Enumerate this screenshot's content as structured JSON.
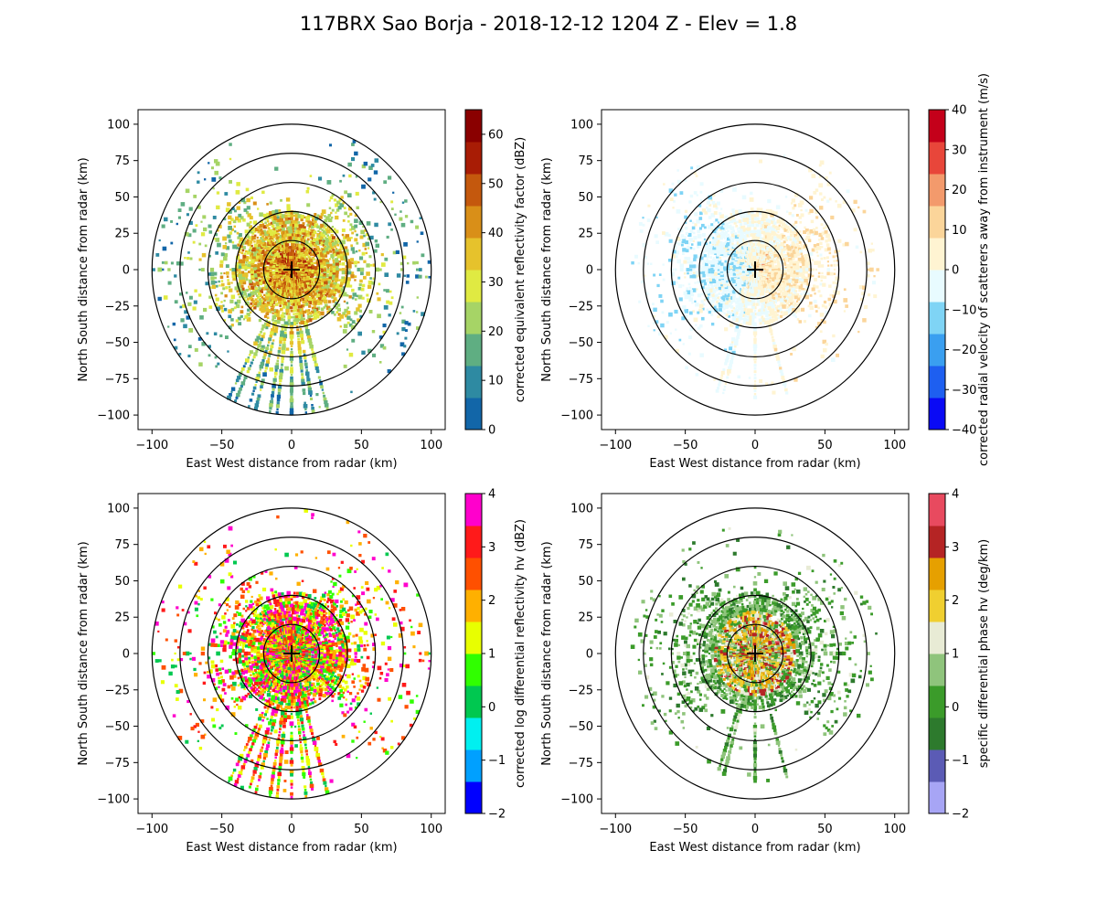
{
  "figure": {
    "title": "117BRX Sao Borja - 2018-12-12 1204 Z -  Elev = 1.8",
    "colors": {
      "ring": "#000000",
      "axis": "#000000",
      "background": "#ffffff"
    }
  },
  "chart_data": [
    {
      "type": "heatmap",
      "panel": "top-left",
      "field": "reflectivity",
      "xlabel": "East West distance from radar (km)",
      "ylabel": "North South distance from radar (km)",
      "xlim": [
        -110,
        110
      ],
      "ylim": [
        -110,
        110
      ],
      "xticks": [
        -100,
        -50,
        0,
        50,
        100
      ],
      "yticks": [
        -100,
        -75,
        -50,
        -25,
        0,
        25,
        50,
        75,
        100
      ],
      "range_rings_km": [
        20,
        40,
        60,
        80,
        100
      ],
      "colorbar": {
        "label": "corrected equivalent reflectivity factor (dBZ)",
        "vmin": 0,
        "vmax": 65,
        "ticks": [
          0,
          10,
          20,
          30,
          40,
          50,
          60
        ],
        "colors": [
          "#1266a8",
          "#2e8aa2",
          "#5fae82",
          "#a6d466",
          "#e0ea42",
          "#e6c22c",
          "#d98f18",
          "#c4580d",
          "#a81c05",
          "#8a0000"
        ]
      },
      "echo": {
        "max_range_km": 100,
        "south_beams_deg": [
          165,
          172,
          180,
          188,
          197,
          205
        ]
      }
    },
    {
      "type": "heatmap",
      "panel": "top-right",
      "field": "velocity",
      "xlabel": "East West distance from radar (km)",
      "ylabel": "North South distance from radar (km)",
      "xlim": [
        -110,
        110
      ],
      "ylim": [
        -110,
        110
      ],
      "xticks": [
        -100,
        -50,
        0,
        50,
        100
      ],
      "yticks": [
        -100,
        -75,
        -50,
        -25,
        0,
        25,
        50,
        75,
        100
      ],
      "range_rings_km": [
        20,
        40,
        60,
        80,
        100
      ],
      "colorbar": {
        "label": "corrected radial velocity of scatterers away from instrument (m/s)",
        "vmin": -40,
        "vmax": 40,
        "ticks": [
          -40,
          -30,
          -20,
          -10,
          0,
          10,
          20,
          30,
          40
        ],
        "colors": [
          "#0a0af5",
          "#1e5ff0",
          "#3a9ff0",
          "#7fd4f5",
          "#e8fbff",
          "#fff4d2",
          "#fbd59a",
          "#f39a6c",
          "#e8463a",
          "#c4001a"
        ]
      },
      "echo": {
        "max_range_km": 90,
        "south_beams_deg": [
          165,
          180,
          197
        ]
      }
    },
    {
      "type": "heatmap",
      "panel": "bottom-left",
      "field": "differential_reflectivity",
      "xlabel": "East West distance from radar (km)",
      "ylabel": "North South distance from radar (km)",
      "xlim": [
        -110,
        110
      ],
      "ylim": [
        -110,
        110
      ],
      "xticks": [
        -100,
        -50,
        0,
        50,
        100
      ],
      "yticks": [
        -100,
        -75,
        -50,
        -25,
        0,
        25,
        50,
        75,
        100
      ],
      "range_rings_km": [
        20,
        40,
        60,
        80,
        100
      ],
      "colorbar": {
        "label": "corrected log differential reflectivity hv (dBZ)",
        "vmin": -2,
        "vmax": 4,
        "ticks": [
          -2,
          -1,
          0,
          1,
          2,
          3,
          4
        ],
        "colors": [
          "#0000ff",
          "#00a0ff",
          "#00f0f0",
          "#00c850",
          "#30ff00",
          "#e8ff00",
          "#ffb000",
          "#ff5000",
          "#ff1a1a",
          "#ff00cc"
        ]
      },
      "echo": {
        "max_range_km": 100,
        "south_beams_deg": [
          165,
          172,
          180,
          188,
          197,
          205
        ]
      }
    },
    {
      "type": "heatmap",
      "panel": "bottom-right",
      "field": "specific_differential_phase",
      "xlabel": "East West distance from radar (km)",
      "ylabel": "North South distance from radar (km)",
      "xlim": [
        -110,
        110
      ],
      "ylim": [
        -110,
        110
      ],
      "xticks": [
        -100,
        -50,
        0,
        50,
        100
      ],
      "yticks": [
        -100,
        -75,
        -50,
        -25,
        0,
        25,
        50,
        75,
        100
      ],
      "range_rings_km": [
        20,
        40,
        60,
        80,
        100
      ],
      "colorbar": {
        "label": "specific differential phase hv (deg/km)",
        "vmin": -2,
        "vmax": 4,
        "ticks": [
          -2,
          -1,
          0,
          1,
          2,
          3,
          4
        ],
        "colors": [
          "#a7a5f5",
          "#5b5bb5",
          "#2d7a2d",
          "#3b9b2a",
          "#8fc47c",
          "#e8ebd5",
          "#f0cf30",
          "#e6a000",
          "#b52424",
          "#e84a5f"
        ]
      },
      "echo": {
        "max_range_km": 90,
        "south_beams_deg": [
          165,
          180,
          197
        ]
      }
    }
  ]
}
